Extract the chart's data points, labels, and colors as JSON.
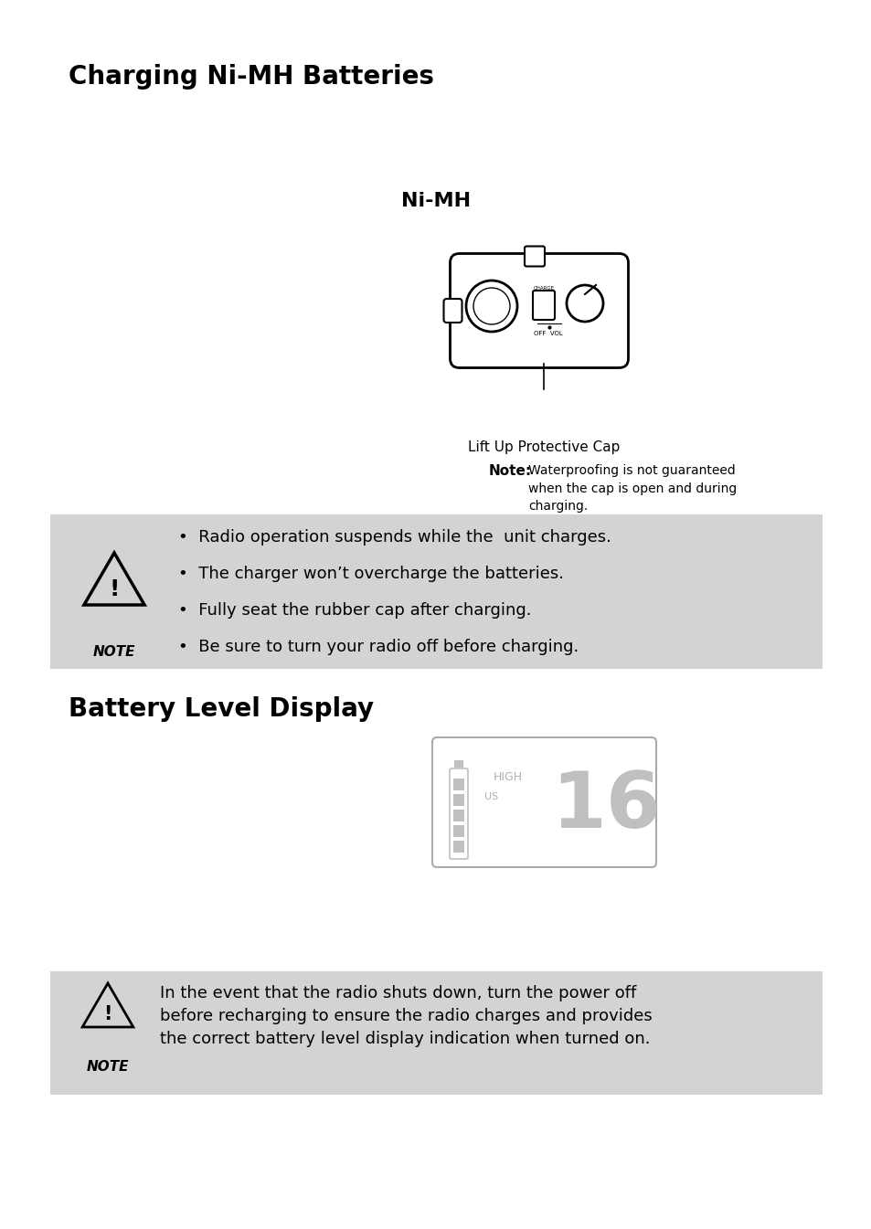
{
  "title": "Charging Ni-MH Batteries",
  "subtitle": "Ni-MH",
  "section2_title": "Battery Level Display",
  "note_bullets": [
    "Radio operation suspends while the  unit charges.",
    "The charger won’t overcharge the batteries.",
    "Fully seat the rubber cap after charging.",
    "Be sure to turn your radio off before charging."
  ],
  "note2_text": "In the event that the radio shuts down, turn the power off\nbefore recharging to ensure the radio charges and provides\nthe correct battery level display indication when turned on.",
  "cap_label": "Lift Up Protective Cap",
  "note_label": "Note:",
  "note_caption": "Waterproofing is not guaranteed\nwhen the cap is open and during\ncharging.",
  "note_word": "NOTE",
  "bg_color": "#ffffff",
  "gray_box_color": "#d3d3d3",
  "text_color": "#000000",
  "gray_text_color": "#b0b0b0"
}
